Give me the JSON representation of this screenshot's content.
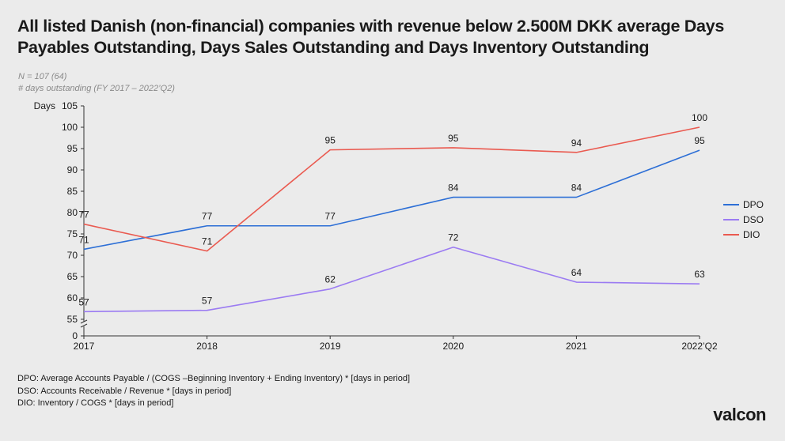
{
  "page": {
    "title_lines": [
      "All listed Danish (non-financial) companies with revenue below 2.500M DKK average Days",
      "Payables Outstanding, Days Sales Outstanding and Days Inventory Outstanding"
    ],
    "subtitle_lines": [
      "N = 107 (64)",
      "# days outstanding (FY 2017 – 2022’Q2)"
    ],
    "footnotes": [
      "DPO: Average Accounts  Payable / (COGS –Beginning Inventory  + Ending Inventory)  * [days in period]",
      "DSO: Accounts Receivable / Revenue  * [days in period]",
      "DIO: Inventory  / COGS * [days in period]"
    ],
    "logo_text": "valcon"
  },
  "chart_data": {
    "type": "line",
    "ylabel": "Days",
    "categories": [
      "2017",
      "2018",
      "2019",
      "2020",
      "2021",
      "2022’Q2"
    ],
    "y_ticks": [
      0,
      55,
      60,
      65,
      70,
      75,
      80,
      85,
      90,
      95,
      100,
      105
    ],
    "ylim": [
      55,
      105
    ],
    "axis_break": true,
    "grid": false,
    "legend_position": "right",
    "series": [
      {
        "name": "DPO",
        "color": "#2d6fd6",
        "values": [
          71.4,
          76.9,
          76.9,
          83.6,
          83.6,
          94.6
        ],
        "labels": [
          "71",
          "77",
          "77",
          "84",
          "84",
          "95"
        ]
      },
      {
        "name": "DSO",
        "color": "#9b7bf2",
        "values": [
          56.8,
          57.1,
          62.1,
          71.9,
          63.7,
          63.3
        ],
        "labels": [
          "57",
          "57",
          "62",
          "72",
          "64",
          "63"
        ]
      },
      {
        "name": "DIO",
        "color": "#ea5a50",
        "values": [
          77.3,
          71.0,
          94.7,
          95.2,
          94.1,
          100.0
        ],
        "labels": [
          "77",
          "71",
          "95",
          "95",
          "94",
          "100"
        ]
      }
    ]
  }
}
